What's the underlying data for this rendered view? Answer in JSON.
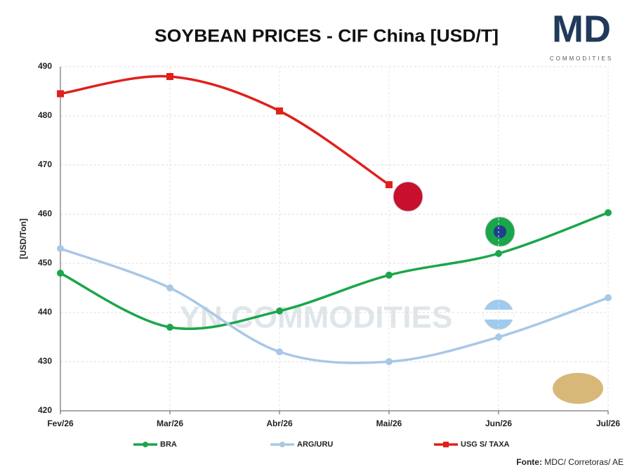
{
  "chart_data": {
    "type": "line",
    "title": "SOYBEAN PRICES - CIF China [USD/T]",
    "y_label": "[USD/Ton]",
    "categories": [
      "Fev/26",
      "Mar/26",
      "Abr/26",
      "Mai/26",
      "Jun/26",
      "Jul/26"
    ],
    "series": [
      {
        "name": "BRA",
        "color": "#1aa64a",
        "values": [
          448,
          437,
          440.3,
          447.6,
          452,
          460.3
        ]
      },
      {
        "name": "ARG/URU",
        "color": "#a8c8e6",
        "values": [
          453,
          445,
          432,
          430,
          435,
          443
        ]
      },
      {
        "name": "USG S/ TAXA",
        "color": "#e0201b",
        "values": [
          484.5,
          488,
          481,
          466,
          null,
          null
        ]
      }
    ],
    "ylim": [
      420,
      490
    ],
    "yticks": [
      420,
      430,
      440,
      450,
      460,
      470,
      480,
      490
    ],
    "grid": true,
    "legend": "bottom",
    "watermark": "YN COMMODITIES",
    "logo": {
      "mark": "MD",
      "text": "COMMODITIES"
    },
    "source_label": "Fonte:",
    "source": "MDC/ Corretoras/ AE"
  }
}
